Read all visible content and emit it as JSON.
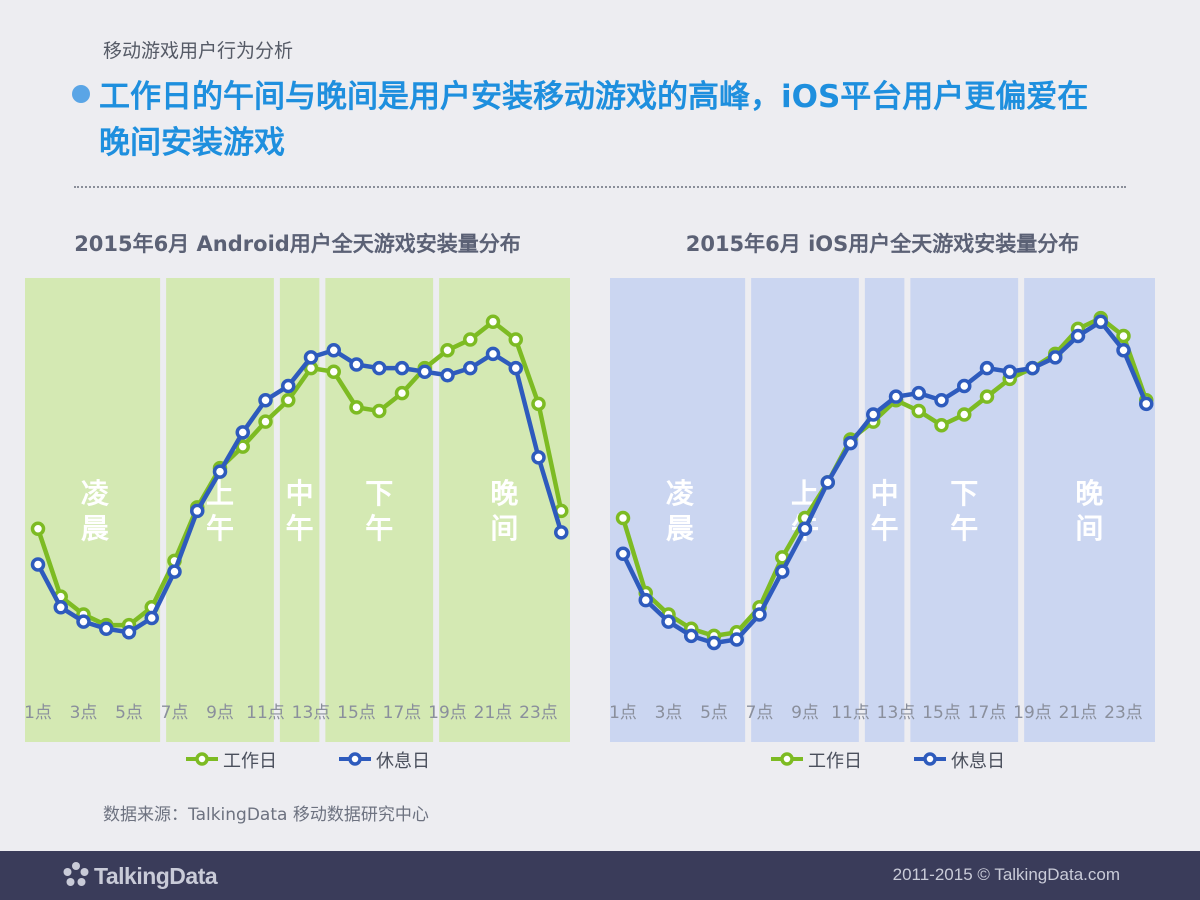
{
  "header": {
    "subtitle": "移动游戏用户行为分析",
    "headline": "工作日的午间与晚间是用户安装移动游戏的高峰，iOS平台用户更偏爱在晚间安装游戏"
  },
  "legend": {
    "workday": "工作日",
    "restday": "休息日"
  },
  "colors": {
    "workday": "#7dbb23",
    "restday": "#2e5bbd",
    "android_band": "#d4e9b3",
    "ios_band": "#cbd6f1"
  },
  "chart_data": [
    {
      "type": "line",
      "title": "2015年6月 Android用户全天游戏安装量分布",
      "x": [
        1,
        2,
        3,
        4,
        5,
        6,
        7,
        8,
        9,
        10,
        11,
        12,
        13,
        14,
        15,
        16,
        17,
        18,
        19,
        20,
        21,
        22,
        23,
        24
      ],
      "tick_labels": [
        "1点",
        "3点",
        "5点",
        "7点",
        "9点",
        "11点",
        "13点",
        "15点",
        "17点",
        "19点",
        "21点",
        "23点"
      ],
      "ylim": [
        0,
        100
      ],
      "periods": [
        {
          "label": "凌晨",
          "from": 1,
          "to": 6
        },
        {
          "label": "上午",
          "from": 7,
          "to": 11
        },
        {
          "label": "中午",
          "from": 12,
          "to": 13
        },
        {
          "label": "下午",
          "from": 14,
          "to": 18
        },
        {
          "label": "晚间",
          "from": 19,
          "to": 24
        }
      ],
      "series": [
        {
          "name": "工作日",
          "values": [
            39,
            20,
            15,
            12,
            12,
            17,
            30,
            45,
            56,
            62,
            69,
            75,
            84,
            83,
            73,
            72,
            77,
            84,
            89,
            92,
            97,
            92,
            74,
            44
          ]
        },
        {
          "name": "休息日",
          "values": [
            29,
            17,
            13,
            11,
            10,
            14,
            27,
            44,
            55,
            66,
            75,
            79,
            87,
            89,
            85,
            84,
            84,
            83,
            82,
            84,
            88,
            84,
            59,
            38
          ]
        }
      ]
    },
    {
      "type": "line",
      "title": "2015年6月 iOS用户全天游戏安装量分布",
      "x": [
        1,
        2,
        3,
        4,
        5,
        6,
        7,
        8,
        9,
        10,
        11,
        12,
        13,
        14,
        15,
        16,
        17,
        18,
        19,
        20,
        21,
        22,
        23,
        24
      ],
      "tick_labels": [
        "1点",
        "3点",
        "5点",
        "7点",
        "9点",
        "11点",
        "13点",
        "15点",
        "17点",
        "19点",
        "21点",
        "23点"
      ],
      "ylim": [
        0,
        100
      ],
      "periods": [
        {
          "label": "凌晨",
          "from": 1,
          "to": 6
        },
        {
          "label": "上午",
          "from": 7,
          "to": 11
        },
        {
          "label": "中午",
          "from": 12,
          "to": 13
        },
        {
          "label": "下午",
          "from": 14,
          "to": 18
        },
        {
          "label": "晚间",
          "from": 19,
          "to": 24
        }
      ],
      "series": [
        {
          "name": "工作日",
          "values": [
            42,
            21,
            15,
            11,
            9,
            10,
            17,
            31,
            42,
            52,
            64,
            69,
            75,
            72,
            68,
            71,
            76,
            81,
            84,
            88,
            95,
            98,
            93,
            75
          ]
        },
        {
          "name": "休息日",
          "values": [
            32,
            19,
            13,
            9,
            7,
            8,
            15,
            27,
            39,
            52,
            63,
            71,
            76,
            77,
            75,
            79,
            84,
            83,
            84,
            87,
            93,
            97,
            89,
            74
          ]
        }
      ]
    }
  ],
  "source": "数据来源：TalkingData 移动数据研究中心",
  "footer": {
    "logo_text": "TalkingData",
    "copyright": "2011-2015 © TalkingData.com"
  }
}
